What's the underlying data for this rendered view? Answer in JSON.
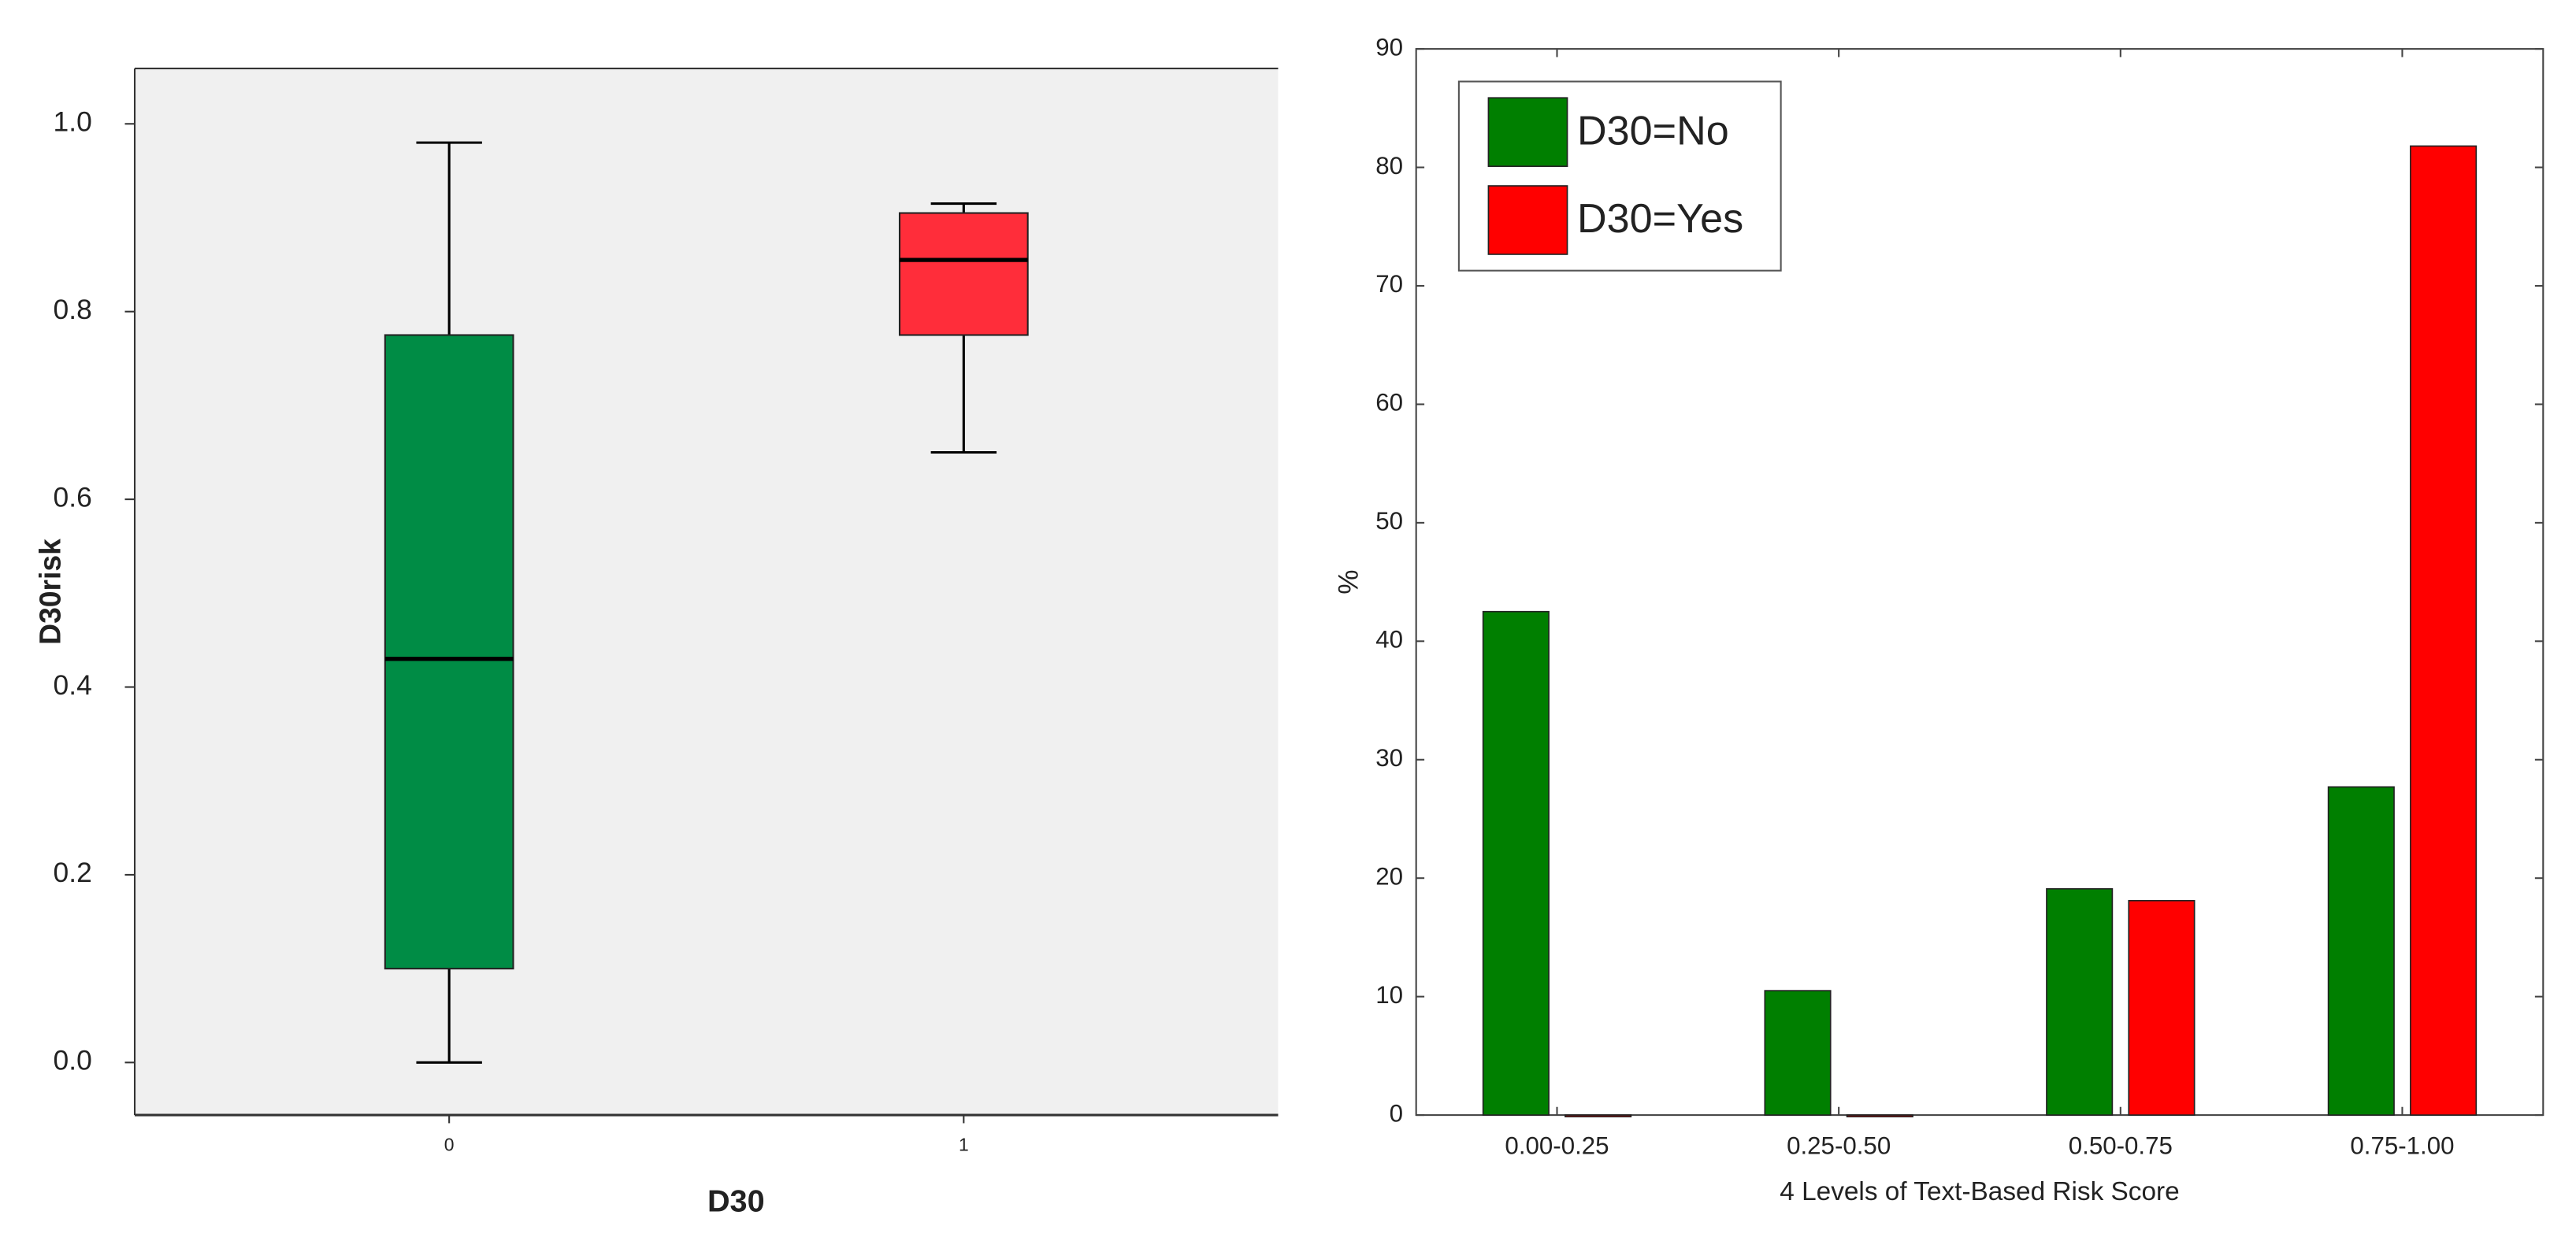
{
  "chart_data": [
    {
      "type": "box",
      "ylabel": "D30risk",
      "xlabel": "D30",
      "categories": [
        "0",
        "1"
      ],
      "boxes": [
        {
          "min": 0,
          "q1": 0.1,
          "median": 0.43,
          "q3": 0.775,
          "max": 0.98,
          "color": "#008c45"
        },
        {
          "min": 0.65,
          "q1": 0.775,
          "median": 0.855,
          "q3": 0.905,
          "max": 0.915,
          "color": "#ff2d3a"
        }
      ],
      "ylim": [
        -0.056,
        1.059
      ],
      "yticks": [
        {
          "value": 0,
          "label": "0.0"
        },
        0.2,
        0.4,
        0.6,
        0.8,
        {
          "value": 1,
          "label": "1.0"
        }
      ]
    },
    {
      "type": "bar",
      "ylabel": "%",
      "xlabel": "4 Levels of Text-Based Risk Score",
      "categories": [
        "0.00-0.25",
        "0.25-0.50",
        "0.50-0.75",
        "0.75-1.00"
      ],
      "series": [
        {
          "name": "D30=No",
          "color": "#007f00",
          "values": [
            42.5,
            10.5,
            19.1,
            27.7
          ]
        },
        {
          "name": "D30=Yes",
          "color": "#ff0000",
          "values": [
            0,
            0,
            18.1,
            81.8
          ]
        }
      ],
      "ylim": [
        0,
        90
      ],
      "yticks": [
        0,
        10,
        20,
        30,
        40,
        50,
        60,
        70,
        80,
        90
      ],
      "legend": "top-left"
    }
  ]
}
